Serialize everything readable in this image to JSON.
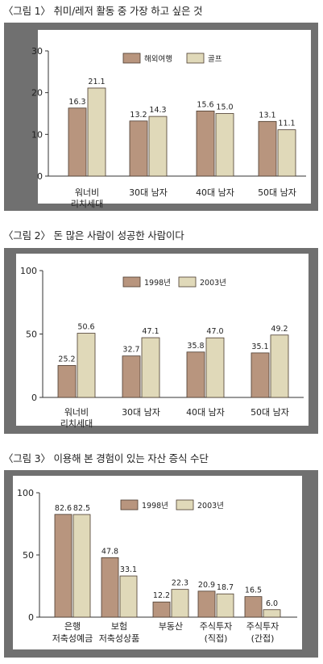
{
  "figures": [
    {
      "title": "〈그림 1〉 취미/레저 활동 중 가장 하고 싶은 것"
    },
    {
      "title": "〈그림 2〉 돈 많은 사람이 성공한 사람이다"
    },
    {
      "title": "〈그림 3〉 이용해 본 경험이 있는 자산 증식 수단"
    }
  ],
  "colors": {
    "series1": "#b8957e",
    "series2": "#e0d9b9",
    "bar_stroke": "#4a3a2e",
    "panel_frame": "#707070",
    "plot_bg": "#ffffff"
  },
  "chart_data": [
    {
      "type": "bar",
      "categories": [
        "워너비\n리치세대",
        "30대 남자",
        "40대 남자",
        "50대 남자"
      ],
      "series": [
        {
          "name": "해외여행",
          "values": [
            16.3,
            13.2,
            15.6,
            13.1
          ],
          "labels": [
            "16.3",
            "13.2",
            "15.6",
            "13.1"
          ]
        },
        {
          "name": "골프",
          "values": [
            21.1,
            14.3,
            15.0,
            11.1
          ],
          "labels": [
            "21.1",
            "14.3",
            "15.0",
            "11.1"
          ]
        }
      ],
      "ylim": [
        0,
        30
      ],
      "yticks": [
        "0",
        "10",
        "20",
        "30"
      ],
      "ytick_values": [
        0,
        10,
        20,
        30
      ],
      "grid": false,
      "legend": "top-right"
    },
    {
      "type": "bar",
      "categories": [
        "워너비\n리치세대",
        "30대 남자",
        "40대 남자",
        "50대 남자"
      ],
      "series": [
        {
          "name": "1998년",
          "values": [
            25.2,
            32.7,
            35.8,
            35.1
          ],
          "labels": [
            "25.2",
            "32.7",
            "35.8",
            "35.1"
          ]
        },
        {
          "name": "2003년",
          "values": [
            50.6,
            47.1,
            47.0,
            49.2
          ],
          "labels": [
            "50.6",
            "47.1",
            "47.0",
            "49.2"
          ]
        }
      ],
      "ylim": [
        0,
        100
      ],
      "yticks": [
        "0",
        "50",
        "100"
      ],
      "ytick_values": [
        0,
        50,
        100
      ],
      "grid": false,
      "legend": "top-right"
    },
    {
      "type": "bar",
      "categories": [
        "은행\n저축성예금",
        "보험\n저축성상품",
        "부동산",
        "주식투자\n(직접)",
        "주식투자\n(간접)"
      ],
      "series": [
        {
          "name": "1998년",
          "values": [
            82.6,
            47.8,
            12.2,
            20.9,
            16.5
          ],
          "labels": [
            "82.6",
            "47.8",
            "12.2",
            "20.9",
            "16.5"
          ]
        },
        {
          "name": "2003년",
          "values": [
            82.5,
            33.1,
            22.3,
            18.7,
            6.0
          ],
          "labels": [
            "82.5",
            "33.1",
            "22.3",
            "18.7",
            "6.0"
          ]
        }
      ],
      "ylim": [
        0,
        100
      ],
      "yticks": [
        "0",
        "50",
        "100"
      ],
      "ytick_values": [
        0,
        50,
        100
      ],
      "grid": false,
      "legend": "top-right"
    }
  ]
}
